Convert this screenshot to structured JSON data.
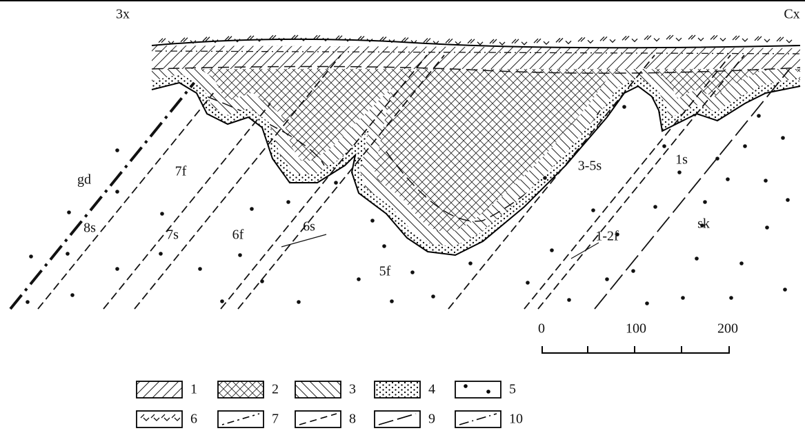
{
  "directions": {
    "west": "3x",
    "east": "Cx"
  },
  "labels": [
    "gd",
    "7f",
    "8s",
    "7s",
    "6f",
    "6s",
    "5f",
    "3-5s",
    "1-2f",
    "1s",
    "sk"
  ],
  "scale": {
    "ticks": [
      0,
      100,
      200
    ]
  },
  "legend": {
    "items": [
      1,
      2,
      3,
      4,
      5,
      6,
      7,
      8,
      9,
      10
    ]
  }
}
